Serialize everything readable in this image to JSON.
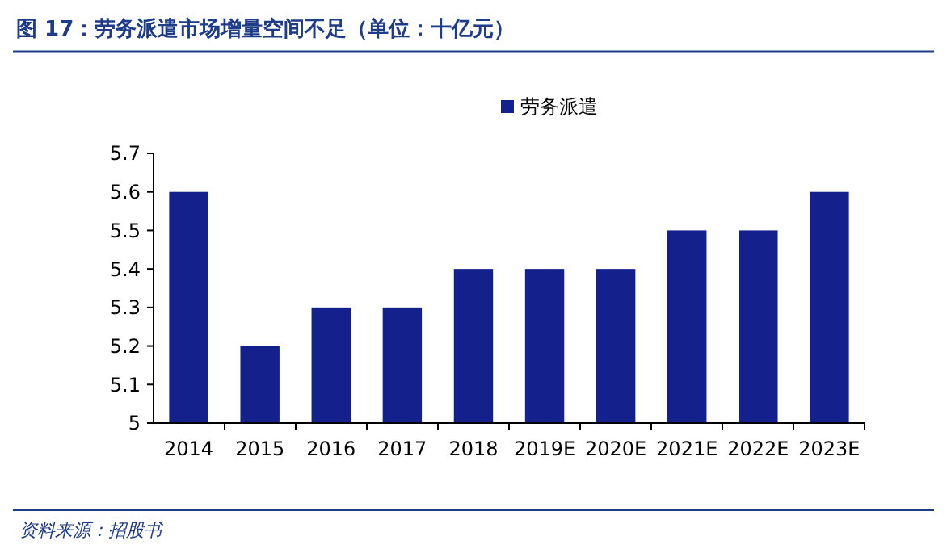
{
  "chart_data": {
    "type": "bar",
    "title": "图 17：劳务派遣市场增量空间不足（单位：十亿元）",
    "categories": [
      "2014",
      "2015",
      "2016",
      "2017",
      "2018",
      "2019E",
      "2020E",
      "2021E",
      "2022E",
      "2023E"
    ],
    "series": [
      {
        "name": "劳务派遣",
        "color": "#14218c",
        "values": [
          5.6,
          5.2,
          5.3,
          5.3,
          5.4,
          5.4,
          5.4,
          5.5,
          5.5,
          5.6
        ]
      }
    ],
    "ylim": [
      5,
      5.7
    ],
    "yticks": [
      5,
      5.1,
      5.2,
      5.3,
      5.4,
      5.5,
      5.6,
      5.7
    ],
    "grid": false,
    "legend": "top",
    "annotations": [
      "资料来源：招股书"
    ]
  }
}
